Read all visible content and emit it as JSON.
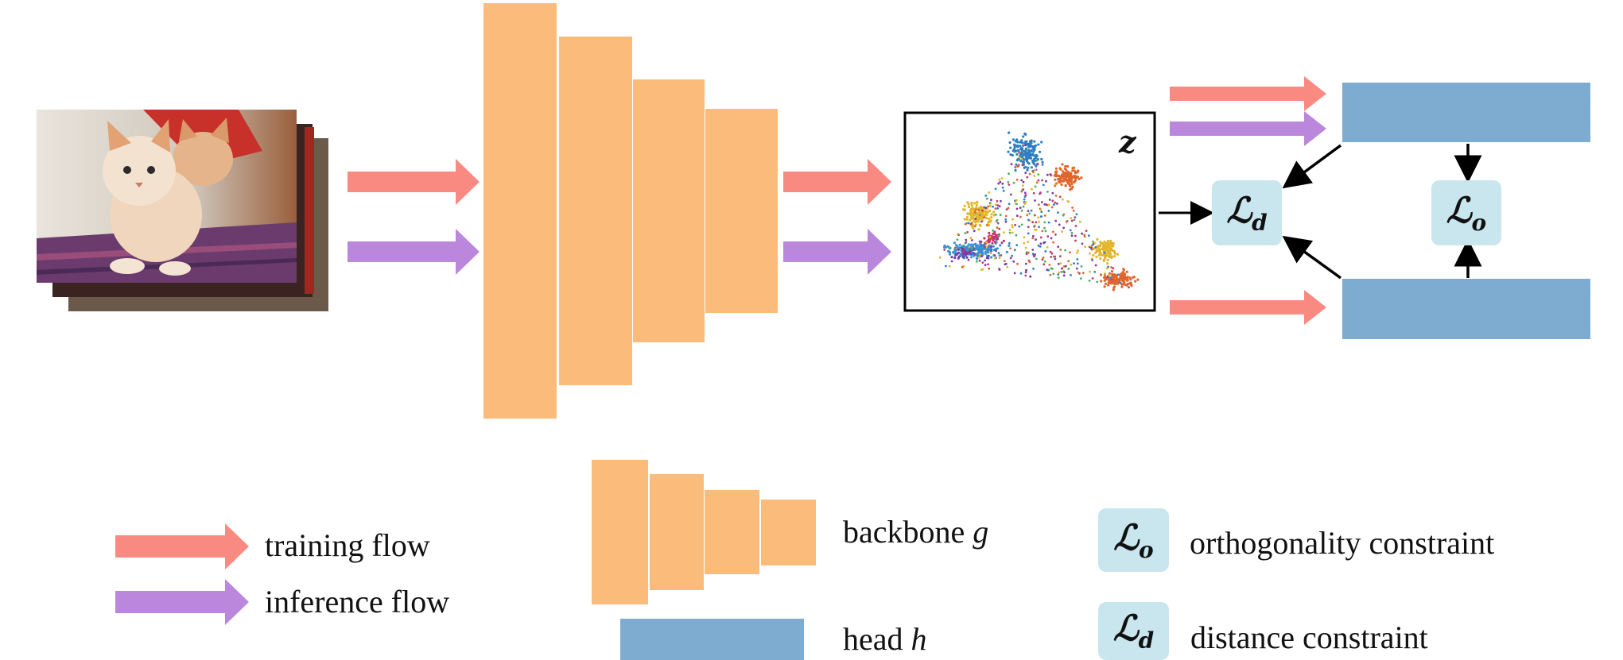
{
  "colors": {
    "training_arrow": "#f98a82",
    "inference_arrow": "#bb87dc",
    "backbone": "#fbbb7a",
    "head": "#7eabd0",
    "loss_box": "#c9e6ee",
    "black": "#000000"
  },
  "images": {
    "input_photo": "cat-kittens-photo-stack"
  },
  "feature_panel": {
    "symbol": "z",
    "content": "scatter-plot-of-embeddings"
  },
  "losses": {
    "distance": {
      "symbol": "ℒ",
      "sub": "d"
    },
    "orthogonality": {
      "symbol": "ℒ",
      "sub": "o"
    }
  },
  "legend": {
    "training_flow": "training flow",
    "inference_flow": "inference flow",
    "backbone_text": "backbone",
    "backbone_var": "g",
    "head_text": "head",
    "head_var": "h",
    "orthogonality": "orthogonality constraint",
    "distance": "distance constraint"
  }
}
